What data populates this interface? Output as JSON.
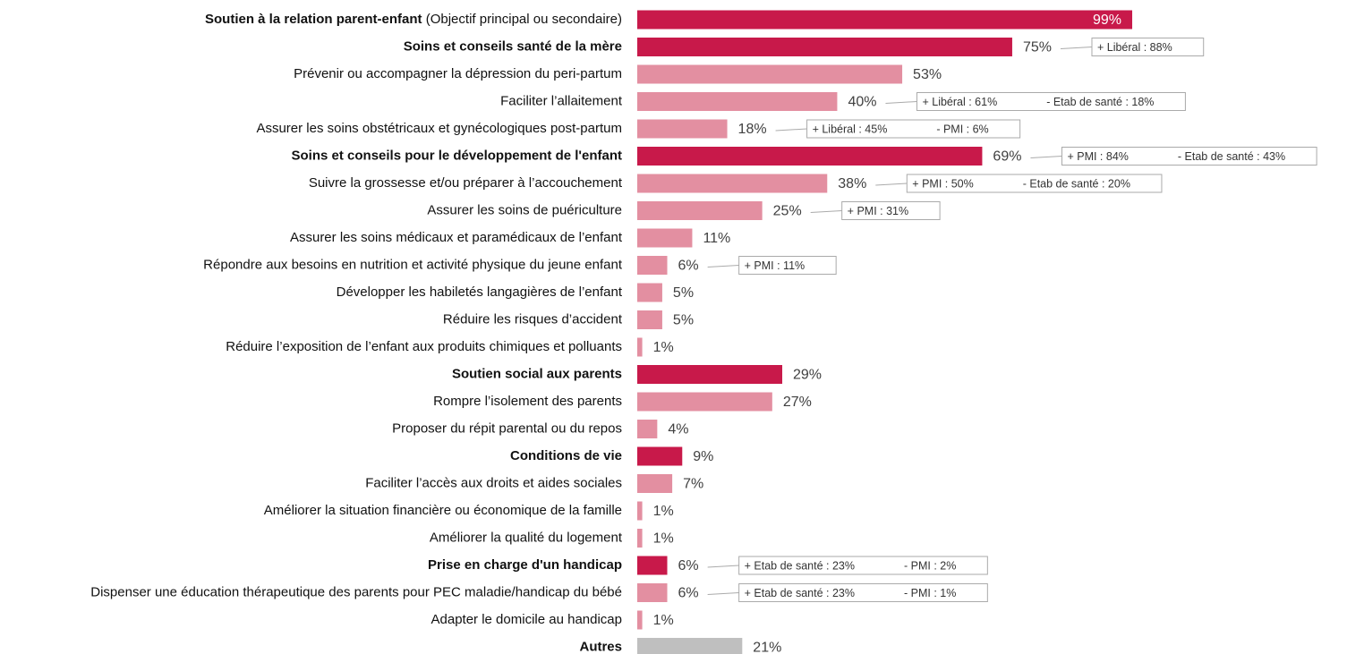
{
  "chart_data": {
    "type": "bar",
    "orientation": "horizontal",
    "categories": [
      "Soutien à la relation parent-enfant",
      "Soins et conseils santé de la mère",
      "Prévenir ou accompagner la dépression du peri-partum",
      "Faciliter l’allaitement",
      "Assurer les soins obstétricaux et gynécologiques post-partum",
      "Soins et conseils pour le développement de l'enfant",
      "Suivre la grossesse et/ou préparer à l’accouchement",
      "Assurer les soins de puériculture",
      "Assurer les soins médicaux et paramédicaux de l’enfant",
      "Répondre aux besoins en nutrition et activité physique du jeune enfant",
      "Développer les habiletés langagières de l’enfant",
      "Réduire les risques d’accident",
      "Réduire l’exposition de l’enfant aux produits chimiques et polluants",
      "Soutien social aux parents",
      "Rompre l’isolement des parents",
      "Proposer du répit parental ou du repos",
      "Conditions de vie",
      "Faciliter l’accès aux droits et aides sociales",
      "Améliorer la situation financière ou économique de la famille",
      "Améliorer la qualité du logement",
      "Prise en charge d'un handicap",
      "Dispenser une éducation thérapeutique des parents pour PEC maladie/handicap du bébé",
      "Adapter le domicile au handicap",
      "Autres"
    ],
    "first_category_note": "(Objectif principal ou secondaire)",
    "values": [
      99,
      75,
      53,
      40,
      18,
      69,
      38,
      25,
      11,
      6,
      5,
      5,
      1,
      29,
      27,
      4,
      9,
      7,
      1,
      1,
      6,
      6,
      1,
      21
    ],
    "value_labels": [
      "99%",
      "75%",
      "53%",
      "40%",
      "18%",
      "69%",
      "38%",
      "25%",
      "11%",
      "6%",
      "5%",
      "5%",
      "1%",
      "29%",
      "27%",
      "4%",
      "9%",
      "7%",
      "1%",
      "1%",
      "6%",
      "6%",
      "1%",
      "21%"
    ],
    "colors": [
      "#c8194a",
      "#c8194a",
      "#e38fa1",
      "#e38fa1",
      "#e38fa1",
      "#c8194a",
      "#e38fa1",
      "#e38fa1",
      "#e38fa1",
      "#e38fa1",
      "#e38fa1",
      "#e38fa1",
      "#e38fa1",
      "#c8194a",
      "#e38fa1",
      "#e38fa1",
      "#c8194a",
      "#e38fa1",
      "#e38fa1",
      "#e38fa1",
      "#c8194a",
      "#e38fa1",
      "#e38fa1",
      "#bfbfbf"
    ],
    "label_bold": [
      true,
      true,
      false,
      false,
      false,
      true,
      false,
      false,
      false,
      false,
      false,
      false,
      false,
      true,
      false,
      false,
      true,
      false,
      false,
      false,
      true,
      false,
      false,
      true
    ],
    "xlim": [
      0,
      100
    ],
    "annotations": [
      {
        "category": 1,
        "items": [
          "+ Libéral : 88%"
        ]
      },
      {
        "category": 3,
        "items": [
          "+ Libéral : 61%",
          "- Etab de santé : 18%"
        ]
      },
      {
        "category": 4,
        "items": [
          "+ Libéral : 45%",
          "-  PMI : 6%"
        ]
      },
      {
        "category": 5,
        "items": [
          "+ PMI : 84%",
          "- Etab de santé : 43%"
        ]
      },
      {
        "category": 6,
        "items": [
          "+ PMI : 50%",
          "- Etab de santé : 20%"
        ]
      },
      {
        "category": 7,
        "items": [
          "+ PMI : 31%"
        ]
      },
      {
        "category": 9,
        "items": [
          "+ PMI : 11%"
        ]
      },
      {
        "category": 20,
        "items": [
          "+ Etab de santé : 23%",
          "- PMI : 2%"
        ]
      },
      {
        "category": 21,
        "items": [
          "+ Etab de santé : 23%",
          "- PMI : 1%"
        ]
      }
    ]
  }
}
